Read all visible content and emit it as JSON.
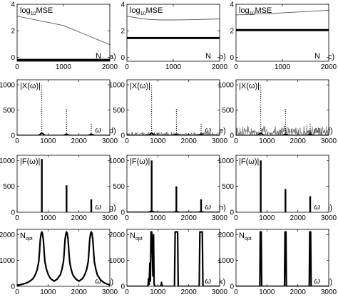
{
  "chart_data": [
    {
      "id": "a",
      "type": "line",
      "panel_label": "a)",
      "xlim": [
        0,
        2000
      ],
      "ylim": [
        -0.3,
        4
      ],
      "xticks": [
        0,
        1000,
        2000
      ],
      "yticks": [
        0,
        2,
        4
      ],
      "label": {
        "main": "log",
        "sub": "10",
        "rest": "MSE"
      },
      "xlabel": "N",
      "series": [
        {
          "style": "thin",
          "x": [
            0,
            1000,
            2000
          ],
          "y": [
            3.1,
            2.4,
            0.95
          ]
        },
        {
          "style": "thick",
          "x": [
            0,
            2000
          ],
          "y": [
            -0.2,
            -0.2
          ]
        }
      ]
    },
    {
      "id": "b",
      "type": "line",
      "panel_label": "b)",
      "xlim": [
        0,
        2000
      ],
      "ylim": [
        -0.3,
        4
      ],
      "xticks": [
        0,
        1000,
        2000
      ],
      "yticks": [
        0,
        2,
        4
      ],
      "label": {
        "main": "log",
        "sub": "10",
        "rest": "MSE"
      },
      "xlabel": "N",
      "series": [
        {
          "style": "thin",
          "x": [
            0,
            250,
            500,
            750,
            1000,
            1250,
            1500,
            1750,
            2000
          ],
          "y": [
            3.1,
            2.95,
            2.85,
            2.82,
            2.82,
            2.83,
            2.85,
            2.87,
            2.9
          ]
        },
        {
          "style": "thick",
          "x": [
            0,
            2000
          ],
          "y": [
            1.45,
            1.45
          ]
        }
      ]
    },
    {
      "id": "c",
      "type": "line",
      "panel_label": "c)",
      "xlim": [
        0,
        2000
      ],
      "ylim": [
        -0.3,
        4
      ],
      "xticks": [
        0,
        1000,
        2000
      ],
      "yticks": [
        0,
        2,
        4
      ],
      "label": {
        "main": "log",
        "sub": "10",
        "rest": "MSE"
      },
      "xlabel": "N",
      "series": [
        {
          "style": "thin",
          "x": [
            0,
            1000,
            2000
          ],
          "y": [
            3.2,
            3.35,
            3.55
          ]
        },
        {
          "style": "thick",
          "x": [
            0,
            2000
          ],
          "y": [
            2.05,
            2.05
          ]
        }
      ]
    },
    {
      "id": "d",
      "type": "spectrum",
      "panel_label": "d)",
      "xlim": [
        0,
        3000
      ],
      "ylim": [
        0,
        1100
      ],
      "xticks": [
        0,
        1000,
        2000,
        3000
      ],
      "yticks": [
        0,
        500,
        1000
      ],
      "label": {
        "main": "|X(ω)|"
      },
      "xlabel": "ω",
      "noise_amp": 8,
      "hump": 45,
      "spikes": [
        {
          "x": 800,
          "y": 1000
        },
        {
          "x": 1600,
          "y": 520
        },
        {
          "x": 2400,
          "y": 250
        }
      ]
    },
    {
      "id": "e",
      "type": "spectrum",
      "panel_label": "e)",
      "xlim": [
        0,
        3000
      ],
      "ylim": [
        0,
        1100
      ],
      "xticks": [
        0,
        1000,
        2000,
        3000
      ],
      "yticks": [
        0,
        500,
        1000
      ],
      "label": {
        "main": "|X(ω)|"
      },
      "xlabel": "ω",
      "noise_amp": 55,
      "hump": 45,
      "spikes": [
        {
          "x": 800,
          "y": 1000
        },
        {
          "x": 1600,
          "y": 520
        },
        {
          "x": 2400,
          "y": 250
        }
      ]
    },
    {
      "id": "f",
      "type": "spectrum",
      "panel_label": "f)",
      "xlim": [
        0,
        3000
      ],
      "ylim": [
        0,
        1100
      ],
      "xticks": [
        0,
        1000,
        2000,
        3000
      ],
      "yticks": [
        0,
        500,
        1000
      ],
      "label": {
        "main": "|X(ω)|"
      },
      "xlabel": "ω",
      "noise_amp": 160,
      "hump": 45,
      "spikes": [
        {
          "x": 800,
          "y": 1000
        },
        {
          "x": 1600,
          "y": 520
        },
        {
          "x": 2400,
          "y": 250
        }
      ]
    },
    {
      "id": "g",
      "type": "spectrum",
      "panel_label": "g)",
      "xlim": [
        0,
        3000
      ],
      "ylim": [
        0,
        1100
      ],
      "xticks": [
        0,
        1000,
        2000,
        3000
      ],
      "yticks": [
        0,
        500,
        1000
      ],
      "label": {
        "main": "|F(ω)|"
      },
      "xlabel": "ω",
      "noise_amp": 0,
      "hump": 0,
      "spikes": [
        {
          "x": 800,
          "y": 1030
        },
        {
          "x": 1600,
          "y": 520
        },
        {
          "x": 2400,
          "y": 250
        }
      ]
    },
    {
      "id": "h",
      "type": "spectrum",
      "panel_label": "h)",
      "xlim": [
        0,
        3000
      ],
      "ylim": [
        0,
        1100
      ],
      "xticks": [
        0,
        1000,
        2000,
        3000
      ],
      "yticks": [
        0,
        500,
        1000
      ],
      "label": {
        "main": "|F(ω)|"
      },
      "xlabel": "ω",
      "noise_amp": 0,
      "hump": 25,
      "spikes": [
        {
          "x": 800,
          "y": 1000
        },
        {
          "x": 1600,
          "y": 500
        },
        {
          "x": 2400,
          "y": 250
        }
      ]
    },
    {
      "id": "i",
      "type": "spectrum",
      "panel_label": "i)",
      "xlim": [
        0,
        3000
      ],
      "ylim": [
        0,
        1100
      ],
      "xticks": [
        0,
        1000,
        2000,
        3000
      ],
      "yticks": [
        0,
        500,
        1000
      ],
      "label": {
        "main": "|F(ω)|"
      },
      "xlabel": "ω",
      "noise_amp": 0,
      "hump": 0,
      "spikes": [
        {
          "x": 800,
          "y": 1000
        },
        {
          "x": 1600,
          "y": 450
        },
        {
          "x": 2400,
          "y": 310
        }
      ]
    },
    {
      "id": "j",
      "type": "line",
      "panel_label": "j)",
      "xlim": [
        0,
        3000
      ],
      "ylim": [
        0,
        2200
      ],
      "xticks": [
        0,
        1000,
        2000,
        3000
      ],
      "yticks": [
        0,
        1000,
        2000
      ],
      "label": {
        "main": "N",
        "sub": "opt"
      },
      "xlabel": "ω",
      "series": [
        {
          "style": "thick",
          "x": [
            0,
            100,
            200,
            300,
            400,
            500,
            550,
            600,
            650,
            700,
            720,
            750,
            780,
            800,
            820,
            850,
            880,
            900,
            950,
            1000,
            1050,
            1100,
            1200,
            1300,
            1400,
            1450,
            1500,
            1520,
            1550,
            1580,
            1600,
            1620,
            1650,
            1680,
            1700,
            1750,
            1800,
            1900,
            2000,
            2100,
            2150,
            2200,
            2250,
            2300,
            2320,
            2350,
            2380,
            2400,
            2420,
            2450,
            2480,
            2500,
            2550,
            2600,
            2700,
            2800,
            2900,
            3000
          ],
          "y": [
            40,
            60,
            90,
            130,
            190,
            280,
            360,
            480,
            650,
            950,
            1250,
            1800,
            2050,
            2100,
            2050,
            1800,
            1250,
            950,
            650,
            480,
            360,
            280,
            200,
            280,
            450,
            650,
            950,
            1250,
            1800,
            2050,
            2100,
            2050,
            1800,
            1250,
            950,
            650,
            450,
            280,
            200,
            280,
            360,
            480,
            650,
            950,
            1250,
            1800,
            2050,
            2100,
            2050,
            1800,
            1250,
            950,
            650,
            430,
            250,
            150,
            90,
            60
          ]
        }
      ]
    },
    {
      "id": "k",
      "type": "line",
      "panel_label": "k)",
      "xlim": [
        0,
        3000
      ],
      "ylim": [
        0,
        2200
      ],
      "xticks": [
        0,
        1000,
        2000,
        3000
      ],
      "yticks": [
        0,
        1000,
        2000
      ],
      "label": {
        "main": "N",
        "sub": "opt"
      },
      "xlabel": "ω",
      "series": [
        {
          "style": "thick",
          "x": [
            0,
            680,
            700,
            720,
            740,
            760,
            780,
            800,
            820,
            840,
            860,
            880,
            900,
            1000,
            1100,
            1120,
            1140,
            1200,
            1540,
            1560,
            1580,
            1600,
            1620,
            1640,
            1660,
            2340,
            2360,
            2380,
            2400,
            2420,
            2440,
            2460,
            3000
          ],
          "y": [
            0,
            0,
            300,
            80,
            900,
            200,
            2100,
            2100,
            1500,
            400,
            2000,
            100,
            0,
            0,
            0,
            150,
            0,
            0,
            0,
            2100,
            2100,
            2100,
            2100,
            2100,
            0,
            0,
            2100,
            2100,
            2100,
            2100,
            2100,
            0,
            0
          ]
        }
      ]
    },
    {
      "id": "l",
      "type": "line",
      "panel_label": "l)",
      "xlim": [
        0,
        3000
      ],
      "ylim": [
        0,
        2200
      ],
      "xticks": [
        0,
        1000,
        2000,
        3000
      ],
      "yticks": [
        0,
        1000,
        2000
      ],
      "label": {
        "main": "N",
        "sub": "opt"
      },
      "xlabel": "ω",
      "series": [
        {
          "style": "thick",
          "x": [
            0,
            770,
            785,
            800,
            815,
            830,
            1570,
            1585,
            1600,
            1615,
            1630,
            2370,
            2385,
            2400,
            2415,
            2430,
            3000
          ],
          "y": [
            0,
            0,
            2100,
            2100,
            2100,
            0,
            0,
            2100,
            2100,
            2100,
            0,
            0,
            2100,
            2100,
            2100,
            0,
            0
          ]
        }
      ]
    }
  ]
}
